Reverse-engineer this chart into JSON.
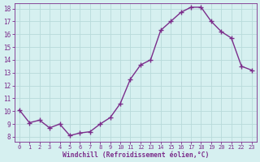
{
  "x": [
    0,
    1,
    2,
    3,
    4,
    5,
    6,
    7,
    8,
    9,
    10,
    11,
    12,
    13,
    14,
    15,
    16,
    17,
    18,
    19,
    20,
    21,
    22,
    23
  ],
  "y": [
    10.1,
    9.1,
    9.3,
    8.7,
    9.0,
    8.1,
    8.3,
    8.4,
    9.0,
    9.5,
    10.6,
    12.5,
    13.6,
    14.0,
    16.3,
    17.0,
    17.7,
    18.1,
    18.1,
    17.0,
    16.2,
    15.7,
    13.5,
    13.2
  ],
  "line_color": "#7b2d8b",
  "marker": "+",
  "marker_size": 4,
  "marker_linewidth": 1.0,
  "line_width": 1.0,
  "bg_color": "#d6f0f0",
  "grid_color": "#b8dada",
  "xlabel": "Windchill (Refroidissement éolien,°C)",
  "xlabel_color": "#7b2d8b",
  "tick_color": "#7b2d8b",
  "ylim": [
    8,
    18
  ],
  "xlim": [
    -0.5,
    23.5
  ],
  "yticks": [
    8,
    9,
    10,
    11,
    12,
    13,
    14,
    15,
    16,
    17,
    18
  ],
  "xticks": [
    0,
    1,
    2,
    3,
    4,
    5,
    6,
    7,
    8,
    9,
    10,
    11,
    12,
    13,
    14,
    15,
    16,
    17,
    18,
    19,
    20,
    21,
    22,
    23
  ]
}
